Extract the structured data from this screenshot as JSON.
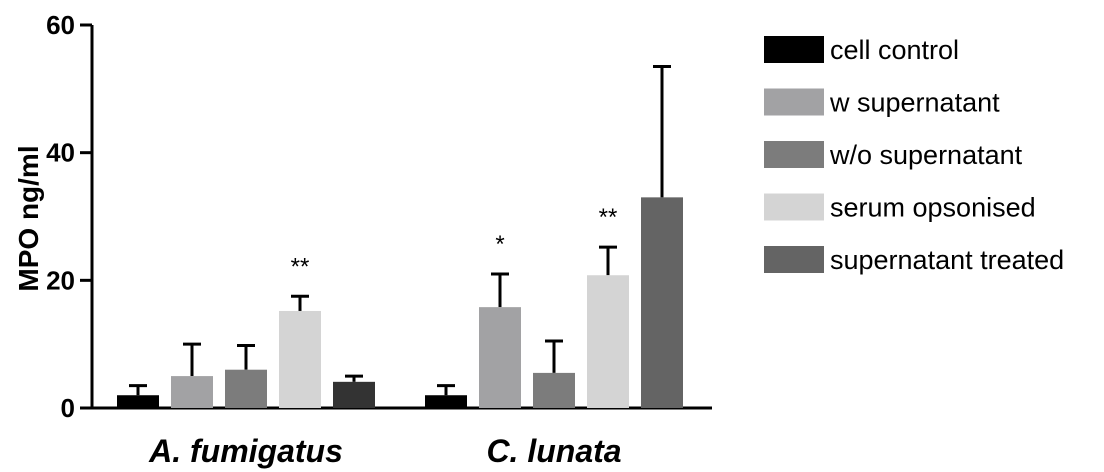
{
  "chart_data": {
    "type": "bar",
    "title": "",
    "xlabel": "",
    "ylabel": "MPO ng/ml",
    "ylim": [
      0,
      60
    ],
    "yticks": [
      0,
      20,
      40,
      60
    ],
    "grid": false,
    "legend_position": "right",
    "categories": [
      "A. fumigatus",
      "C. lunata"
    ],
    "series": [
      {
        "name": "cell control",
        "color": "#000000",
        "values": [
          2.0,
          2.0
        ],
        "errors": [
          1.5,
          1.5
        ]
      },
      {
        "name": "w supernatant",
        "color": "#a2a2a4",
        "values": [
          5.0,
          15.8
        ],
        "errors": [
          5.0,
          5.2
        ]
      },
      {
        "name": "w/o supernatant",
        "color": "#7c7c7c",
        "values": [
          6.0,
          5.5
        ],
        "errors": [
          3.8,
          5.0
        ]
      },
      {
        "name": "serum opsonised",
        "color": "#d4d4d4",
        "values": [
          15.2,
          20.8
        ],
        "errors": [
          2.3,
          4.4
        ]
      },
      {
        "name": "supernatant treated",
        "color_values": [
          "#333333",
          "#646464"
        ],
        "color": "#4a4a4a",
        "values": [
          4.1,
          33.0
        ],
        "errors": [
          0.9,
          20.5
        ]
      }
    ],
    "annotations": [
      {
        "category": "A. fumigatus",
        "series": "serum opsonised",
        "text": "**"
      },
      {
        "category": "C. lunata",
        "series": "w supernatant",
        "text": "*"
      },
      {
        "category": "C. lunata",
        "series": "serum opsonised",
        "text": "**"
      }
    ]
  }
}
